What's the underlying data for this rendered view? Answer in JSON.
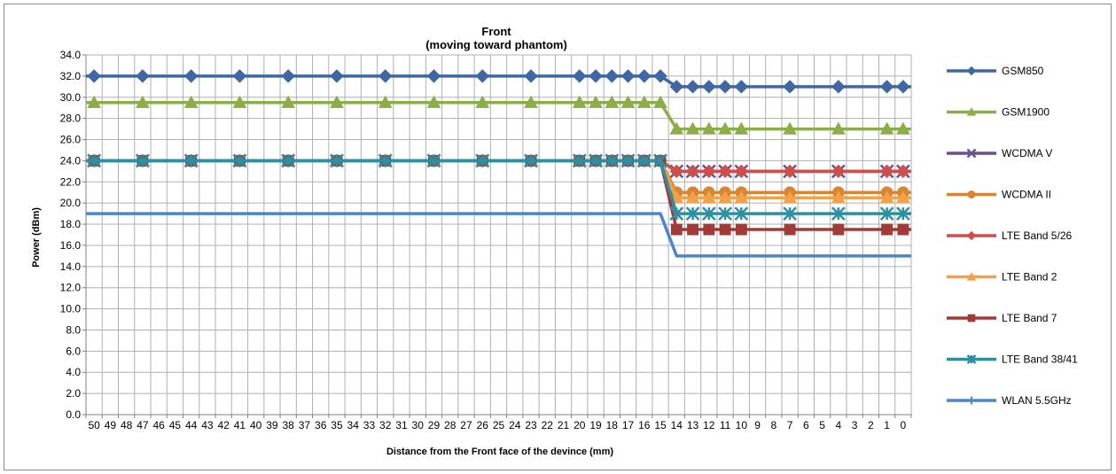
{
  "chart_data": {
    "type": "line",
    "title": "Front",
    "subtitle": "(moving toward phantom)",
    "xlabel": "Distance from the Front  face of the devince (mm)",
    "ylabel": "Power (dBm)",
    "ylim": [
      0,
      34
    ],
    "y_ticks": [
      "0.0",
      "2.0",
      "4.0",
      "6.0",
      "8.0",
      "10.0",
      "12.0",
      "14.0",
      "16.0",
      "18.0",
      "20.0",
      "22.0",
      "24.0",
      "26.0",
      "28.0",
      "30.0",
      "32.0",
      "34.0"
    ],
    "categories": [
      "50",
      "49",
      "48",
      "47",
      "46",
      "45",
      "44",
      "43",
      "42",
      "41",
      "40",
      "39",
      "38",
      "37",
      "36",
      "35",
      "34",
      "33",
      "32",
      "31",
      "30",
      "29",
      "28",
      "27",
      "26",
      "25",
      "24",
      "23",
      "22",
      "21",
      "20",
      "19",
      "18",
      "17",
      "16",
      "15",
      "14",
      "13",
      "12",
      "11",
      "10",
      "9",
      "8",
      "7",
      "6",
      "5",
      "4",
      "3",
      "2",
      "1",
      "0"
    ],
    "grid": true,
    "legend_position": "right",
    "series": [
      {
        "name": "GSM850",
        "color": "#3E67A3",
        "marker": "diamond",
        "high": 32,
        "low": 31,
        "markers_at": [
          "50",
          "47",
          "44",
          "41",
          "38",
          "35",
          "32",
          "29",
          "26",
          "23",
          "20",
          "19",
          "18",
          "17",
          "16",
          "15",
          "14",
          "13",
          "12",
          "11",
          "10",
          "7",
          "4",
          "1",
          "0"
        ]
      },
      {
        "name": "GSM1900",
        "color": "#8BAE48",
        "marker": "triangle",
        "high": 29.5,
        "low": 27,
        "markers_at": [
          "50",
          "47",
          "44",
          "41",
          "38",
          "35",
          "32",
          "29",
          "26",
          "23",
          "20",
          "19",
          "18",
          "17",
          "16",
          "15",
          "14",
          "13",
          "12",
          "11",
          "10",
          "7",
          "4",
          "1",
          "0"
        ]
      },
      {
        "name": "WCDMA V",
        "color": "#6B4F8E",
        "marker": "x",
        "high": 24,
        "low": 23,
        "markers_at": [
          "50",
          "47",
          "44",
          "41",
          "38",
          "35",
          "32",
          "29",
          "26",
          "23",
          "20",
          "19",
          "18",
          "17",
          "16",
          "15",
          "14",
          "13",
          "12",
          "11",
          "10",
          "7",
          "4",
          "1",
          "0"
        ]
      },
      {
        "name": "WCDMA II",
        "color": "#D98532",
        "marker": "circle",
        "high": 24,
        "low": 21,
        "markers_at": [
          "50",
          "47",
          "44",
          "41",
          "38",
          "35",
          "32",
          "29",
          "26",
          "23",
          "20",
          "19",
          "18",
          "17",
          "16",
          "15",
          "14",
          "13",
          "12",
          "11",
          "10",
          "7",
          "4",
          "1",
          "0"
        ]
      },
      {
        "name": "LTE Band 5/26",
        "color": "#CF4D4B",
        "marker": "diamond",
        "high": 24,
        "low": 23,
        "markers_at": [
          "50",
          "47",
          "44",
          "41",
          "38",
          "35",
          "32",
          "29",
          "26",
          "23",
          "20",
          "19",
          "18",
          "17",
          "16",
          "15",
          "14",
          "13",
          "12",
          "11",
          "10",
          "7",
          "4",
          "1",
          "0"
        ]
      },
      {
        "name": "LTE Band 2",
        "color": "#F2A04A",
        "marker": "triangle",
        "high": 24,
        "low": 20.5,
        "markers_at": [
          "50",
          "47",
          "44",
          "41",
          "38",
          "35",
          "32",
          "29",
          "26",
          "23",
          "20",
          "19",
          "18",
          "17",
          "16",
          "15",
          "14",
          "13",
          "12",
          "11",
          "10",
          "7",
          "4",
          "1",
          "0"
        ]
      },
      {
        "name": "LTE Band 7",
        "color": "#A23A37",
        "marker": "square",
        "high": 24,
        "low": 17.5,
        "markers_at": [
          "50",
          "47",
          "44",
          "41",
          "38",
          "35",
          "32",
          "29",
          "26",
          "23",
          "20",
          "19",
          "18",
          "17",
          "16",
          "15",
          "14",
          "13",
          "12",
          "11",
          "10",
          "7",
          "4",
          "1",
          "0"
        ]
      },
      {
        "name": "LTE Band 38/41",
        "color": "#2E8FA3",
        "marker": "star",
        "high": 24,
        "low": 19,
        "markers_at": [
          "50",
          "47",
          "44",
          "41",
          "38",
          "35",
          "32",
          "29",
          "26",
          "23",
          "20",
          "19",
          "18",
          "17",
          "16",
          "15",
          "14",
          "13",
          "12",
          "11",
          "10",
          "7",
          "4",
          "1",
          "0"
        ]
      },
      {
        "name": "WLAN 5.5GHz",
        "color": "#4A86C8",
        "marker": "plus",
        "high": 19,
        "low": 15,
        "markers_at": []
      }
    ]
  }
}
